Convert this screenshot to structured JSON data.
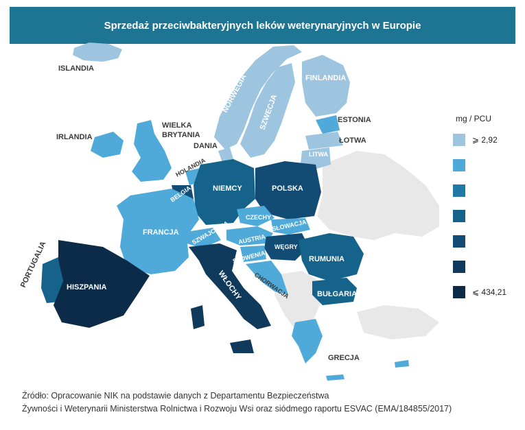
{
  "header": {
    "title": "Sprzedaż przeciwbakteryjnych leków weterynaryjnych w Europie"
  },
  "colors": {
    "c1": "#9ec5e0",
    "c2": "#4faad9",
    "c3": "#1e7aa4",
    "c4": "#15638b",
    "c5": "#124c74",
    "c6": "#0f3a5c",
    "c7": "#0b2b48",
    "none": "#e8e8e8"
  },
  "legend": {
    "title": "mg / PCU",
    "items": [
      {
        "color": "#9ec5e0",
        "label": "⩾ 2,92"
      },
      {
        "color": "#4faad9",
        "label": ""
      },
      {
        "color": "#1e7aa4",
        "label": ""
      },
      {
        "color": "#15638b",
        "label": ""
      },
      {
        "color": "#124c74",
        "label": ""
      },
      {
        "color": "#0f3a5c",
        "label": ""
      },
      {
        "color": "#0b2b48",
        "label": "⩽ 434,21"
      }
    ]
  },
  "countries": {
    "islandia": "ISLANDIA",
    "norwegia": "NORWEGIA",
    "szwecja": "SZWECJA",
    "finlandia": "FINLANDIA",
    "estonia": "ESTONIA",
    "lotwa": "ŁOTWA",
    "litwa": "LITWA",
    "irlandia": "IRLANDIA",
    "wielka_brytania_1": "WIELKA",
    "wielka_brytania_2": "BRYTANIA",
    "dania": "DANIA",
    "holandia": "HOLANDIA",
    "belgia": "BELGIA",
    "niemcy": "NIEMCY",
    "polska": "POLSKA",
    "czechy": "CZECHY",
    "slowacja": "SŁOWACJA",
    "austria": "AUSTRIA",
    "szwajcaria": "SZWAJCARIA",
    "wegry": "WĘGRY",
    "slowenia": "SŁOWENIA",
    "chorwacja": "CHORWACJA",
    "francja": "FRANCJA",
    "rumunia": "RUMUNIA",
    "bulgaria": "BUŁGARIA",
    "portugalia": "PORTUGALIA",
    "hiszpania": "HISZPANIA",
    "wlochy": "WŁOCHY",
    "grecja": "GRECJA"
  },
  "source": {
    "line1": "Źródło: Opracowanie NIK na podstawie danych z Departamentu Bezpieczeństwa",
    "line2": "Żywności i Weterynarii Ministerstwa Rolnictwa i Rozwoju Wsi oraz siódmego raportu ESVAC (EMA/184855/2017)"
  }
}
